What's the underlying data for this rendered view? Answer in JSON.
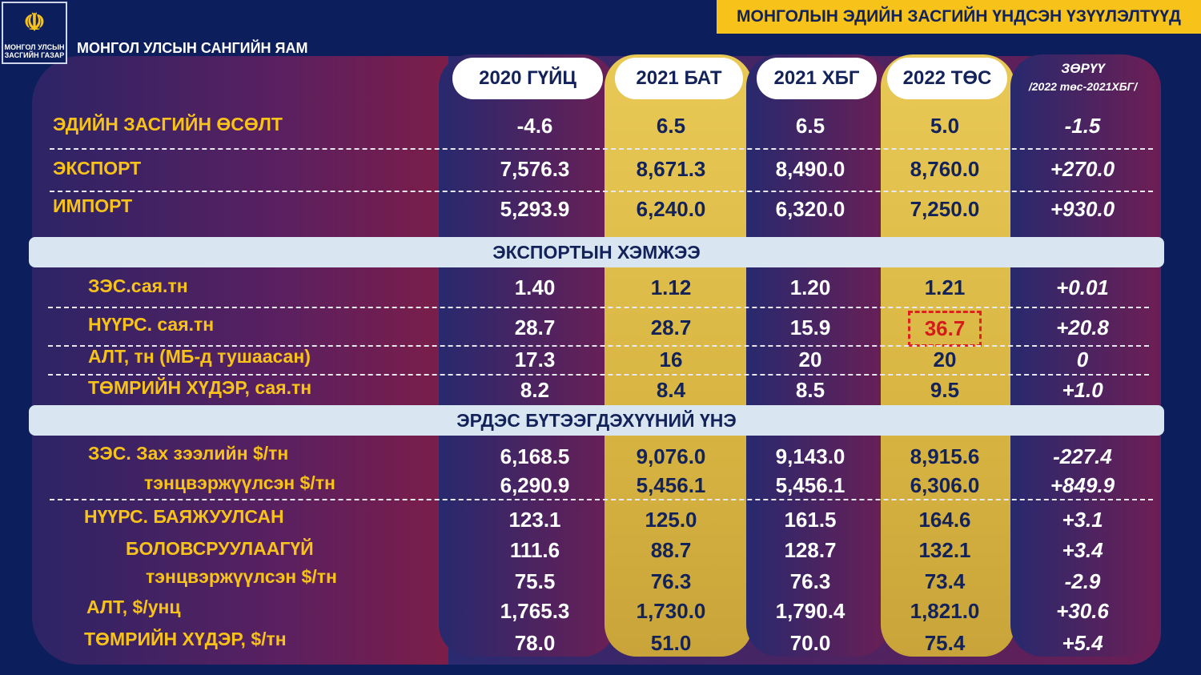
{
  "header": {
    "title": "МОНГОЛЫН ЭДИЙН ЗАСГИЙН ҮНДСЭН ҮЗҮҮЛЭЛТҮҮД",
    "ministry": "МОНГОЛ УЛСЫН САНГИЙН ЯАМ",
    "logo_text": "МОНГОЛ УЛСЫН ЗАСГИЙН ГАЗАР"
  },
  "columns": [
    "2020 ГҮЙЦ",
    "2021 БАТ",
    "2021 ХБГ",
    "2022 ТӨС"
  ],
  "diff_header": {
    "title": "ЗӨРҮҮ",
    "subtitle": "/2022 төс-2021ХБГ/"
  },
  "sections": [
    "ЭКСПОРТЫН ХЭМЖЭЭ",
    "ЭРДЭС БҮТЭЭГДЭХҮҮНИЙ ҮНЭ"
  ],
  "colors": {
    "gold": "#f7c21a",
    "navy": "#0c1f5c",
    "highlight": "#e0201c"
  },
  "rows": [
    {
      "label": "ЭДИЙН ЗАСГИЙН ӨСӨЛТ",
      "values": [
        "-4.6",
        "6.5",
        "6.5",
        "5.0",
        "-1.5"
      ]
    },
    {
      "label": "ЭКСПОРТ",
      "values": [
        "7,576.3",
        "8,671.3",
        "8,490.0",
        "8,760.0",
        "+270.0"
      ]
    },
    {
      "label": "ИМПОРТ",
      "values": [
        "5,293.9",
        "6,240.0",
        "6,320.0",
        "7,250.0",
        "+930.0"
      ]
    },
    {
      "label": "ЗЭС.сая.тн",
      "values": [
        "1.40",
        "1.12",
        "1.20",
        "1.21",
        "+0.01"
      ]
    },
    {
      "label": "НҮҮРС. сая.тн",
      "values": [
        "28.7",
        "28.7",
        "15.9",
        "36.7",
        "+20.8"
      ]
    },
    {
      "label": "АЛТ, тн (МБ-д тушаасан)",
      "values": [
        "17.3",
        "16",
        "20",
        "20",
        "0"
      ]
    },
    {
      "label": "ТӨМРИЙН ХҮДЭР, сая.тн",
      "values": [
        "8.2",
        "8.4",
        "8.5",
        "9.5",
        "+1.0"
      ]
    },
    {
      "label": "ЗЭС. Зах зээлийн $/тн",
      "values": [
        "6,168.5",
        "9,076.0",
        "9,143.0",
        "8,915.6",
        "-227.4"
      ]
    },
    {
      "label": "тэнцвэржүүлсэн $/тн",
      "values": [
        "6,290.9",
        "5,456.1",
        "5,456.1",
        "6,306.0",
        "+849.9"
      ]
    },
    {
      "label": "НҮҮРС. БАЯЖУУЛСАН",
      "values": [
        "123.1",
        "125.0",
        "161.5",
        "164.6",
        "+3.1"
      ]
    },
    {
      "label": "БОЛОВСРУУЛААГҮЙ",
      "values": [
        "111.6",
        "88.7",
        "128.7",
        "132.1",
        "+3.4"
      ]
    },
    {
      "label": "тэнцвэржүүлсэн $/тн",
      "values": [
        "75.5",
        "76.3",
        "76.3",
        "73.4",
        "-2.9"
      ]
    },
    {
      "label": "АЛТ, $/унц",
      "values": [
        "1,765.3",
        "1,730.0",
        "1,790.4",
        "1,821.0",
        "+30.6"
      ]
    },
    {
      "label": "ТӨМРИЙН ХҮДЭР, $/тн",
      "values": [
        "78.0",
        "51.0",
        "70.0",
        "75.4",
        "+5.4"
      ]
    }
  ]
}
